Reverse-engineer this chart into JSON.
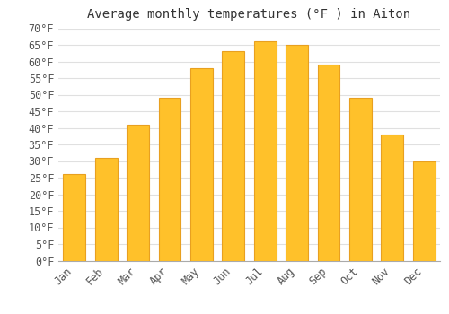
{
  "title": "Average monthly temperatures (°F ) in Aiton",
  "months": [
    "Jan",
    "Feb",
    "Mar",
    "Apr",
    "May",
    "Jun",
    "Jul",
    "Aug",
    "Sep",
    "Oct",
    "Nov",
    "Dec"
  ],
  "values": [
    26,
    31,
    41,
    49,
    58,
    63,
    66,
    65,
    59,
    49,
    38,
    30
  ],
  "bar_color": "#FFC12A",
  "bar_edge_color": "#E8A020",
  "background_color": "#FFFFFF",
  "grid_color": "#E0E0E0",
  "text_color": "#555555",
  "title_color": "#333333",
  "ylim": [
    0,
    70
  ],
  "yticks": [
    0,
    5,
    10,
    15,
    20,
    25,
    30,
    35,
    40,
    45,
    50,
    55,
    60,
    65,
    70
  ],
  "title_fontsize": 10,
  "tick_fontsize": 8.5
}
